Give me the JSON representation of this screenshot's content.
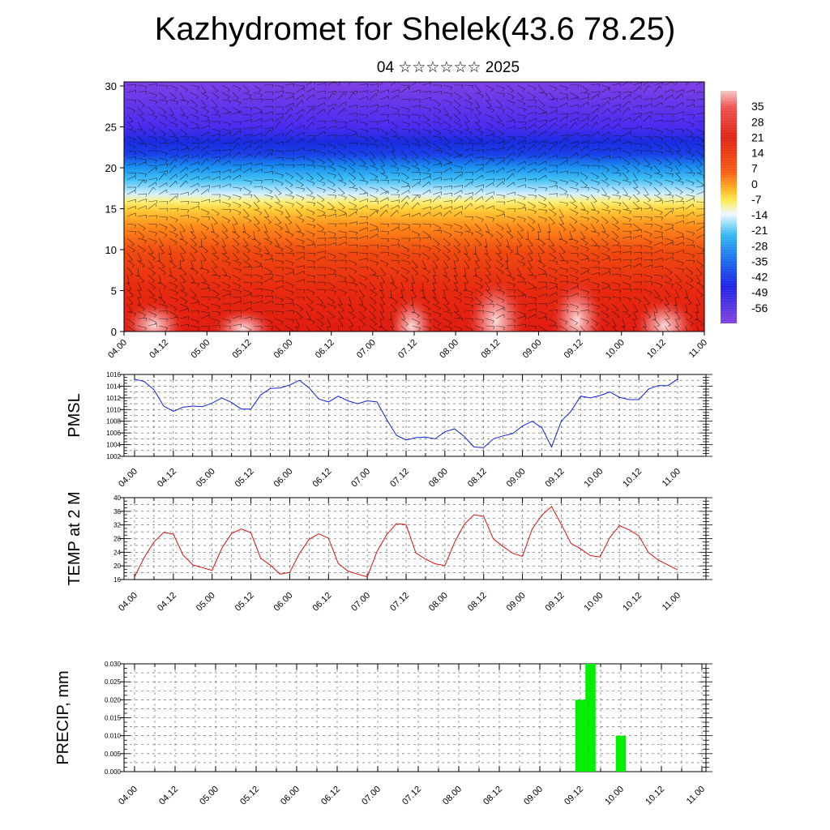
{
  "title": "Kazhydromet for Shelek(43.6 78.25)",
  "subtitle": "04 ☆☆☆☆☆☆ 2025",
  "time_labels": [
    "04.00",
    "04.12",
    "05.00",
    "05.12",
    "06.00",
    "06.12",
    "07.00",
    "07.12",
    "08.00",
    "08.12",
    "09.00",
    "09.12",
    "10.00",
    "10.12",
    "11.00"
  ],
  "chart_data": [
    {
      "type": "heatmap",
      "name_hint": "upper-air temperature cross-section with wind barbs",
      "x": [
        "04.00",
        "04.12",
        "05.00",
        "05.12",
        "06.00",
        "06.12",
        "07.00",
        "07.12",
        "08.00",
        "08.12",
        "09.00",
        "09.12",
        "10.00",
        "10.12",
        "11.00"
      ],
      "y_ticks": [
        0,
        5,
        10,
        15,
        20,
        25,
        30
      ],
      "ylim": [
        0,
        30.5
      ],
      "colorbar_labels": [
        "35",
        "28",
        "21",
        "14",
        "7",
        "0",
        "-7",
        "-14",
        "-21",
        "-28",
        "-35",
        "-42",
        "-49",
        "-56"
      ],
      "colorbar_range": [
        -63,
        42
      ],
      "colors": {
        "hot": "#e02010",
        "warm": "#ff8c1a",
        "yellow": "#ffe84d",
        "pale": "#d8f0ff",
        "cyan": "#19b5f0",
        "blue": "#1a33e6",
        "purple": "#7f3fe6"
      }
    },
    {
      "type": "line",
      "ylabel": "PMSL",
      "y_ticks": [
        1002,
        1004,
        1006,
        1008,
        1010,
        1012,
        1014,
        1016
      ],
      "ylim": [
        1002,
        1016
      ],
      "color": "#1020e0",
      "x": [
        0,
        3,
        6,
        9,
        12,
        15,
        18,
        21,
        24,
        27,
        30,
        33,
        36,
        39,
        42,
        45,
        48,
        51,
        54,
        57,
        60,
        63,
        66,
        69,
        72,
        75,
        78,
        81,
        84,
        87,
        90,
        93,
        96,
        99,
        102,
        105,
        108,
        111,
        114,
        117,
        120,
        123,
        126,
        129,
        132,
        135,
        138,
        141,
        144,
        147,
        150,
        153,
        156,
        159,
        162,
        165,
        168
      ],
      "values": [
        1015.2,
        1014.8,
        1013.4,
        1010.6,
        1009.7,
        1010.4,
        1010.6,
        1010.5,
        1011.1,
        1012.0,
        1011.2,
        1010.1,
        1010.1,
        1012.5,
        1013.6,
        1013.7,
        1014.2,
        1015.0,
        1013.7,
        1011.8,
        1011.3,
        1012.3,
        1011.5,
        1011.0,
        1011.5,
        1011.3,
        1008.3,
        1005.6,
        1004.8,
        1005.2,
        1005.3,
        1005.0,
        1006.2,
        1006.7,
        1005.4,
        1003.6,
        1003.5,
        1005.0,
        1005.5,
        1005.9,
        1007.2,
        1008.0,
        1006.9,
        1003.6,
        1008.0,
        1009.7,
        1012.3,
        1012.0,
        1012.4,
        1013.0,
        1012.1,
        1011.7,
        1011.7,
        1013.5,
        1014.1,
        1014.1,
        1015.2
      ]
    },
    {
      "type": "line",
      "ylabel": "TEMP at 2 M",
      "y_ticks": [
        16,
        20,
        24,
        28,
        32,
        36,
        40
      ],
      "ylim": [
        16,
        40
      ],
      "color": "#e01010",
      "x": [
        0,
        3,
        6,
        9,
        12,
        15,
        18,
        21,
        24,
        27,
        30,
        33,
        36,
        39,
        42,
        45,
        48,
        51,
        54,
        57,
        60,
        63,
        66,
        69,
        72,
        75,
        78,
        81,
        84,
        87,
        90,
        93,
        96,
        99,
        102,
        105,
        108,
        111,
        114,
        117,
        120,
        123,
        126,
        129,
        132,
        135,
        138,
        141,
        144,
        147,
        150,
        153,
        156,
        159,
        162,
        165,
        168
      ],
      "values": [
        16.8,
        22.5,
        27.0,
        29.8,
        29.3,
        23.2,
        20.3,
        19.5,
        18.7,
        25.2,
        29.5,
        30.8,
        29.7,
        22.3,
        20.2,
        17.6,
        18.1,
        23.6,
        27.8,
        29.4,
        28.1,
        20.7,
        18.5,
        17.6,
        16.8,
        24.2,
        29.2,
        32.4,
        32.1,
        23.8,
        22.0,
        20.6,
        20.1,
        26.9,
        32.2,
        35.0,
        34.5,
        27.9,
        25.7,
        23.7,
        22.8,
        30.8,
        34.9,
        37.4,
        32.2,
        26.6,
        25.0,
        23.0,
        22.6,
        28.3,
        31.8,
        30.6,
        28.8,
        23.9,
        21.7,
        20.3,
        18.8
      ]
    },
    {
      "type": "bar",
      "ylabel": "PRECIP, mm",
      "y_ticks": [
        "0.000",
        "0.005",
        "0.010",
        "0.015",
        "0.020",
        "0.025",
        "0.030"
      ],
      "ylim": [
        0,
        0.03
      ],
      "color": "#00ee00",
      "bars": [
        {
          "x": 132,
          "value": 0.02
        },
        {
          "x": 135,
          "value": 0.03
        },
        {
          "x": 144,
          "value": 0.01
        }
      ]
    }
  ]
}
